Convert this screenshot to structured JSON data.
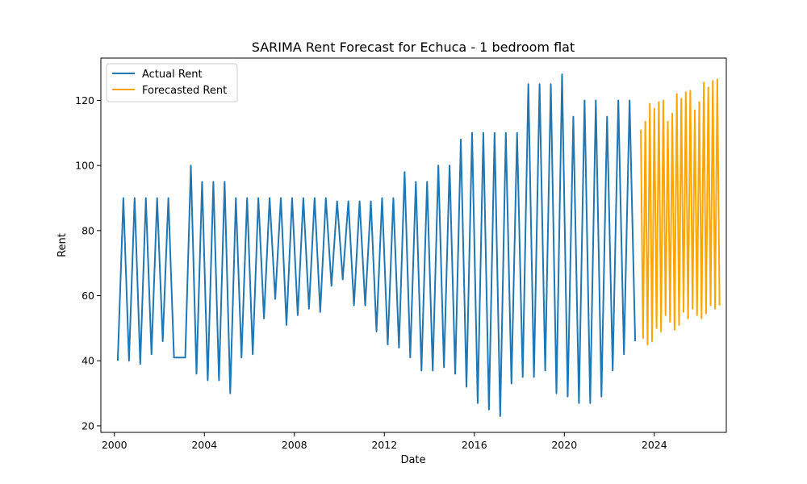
{
  "chart_data": {
    "type": "line",
    "title": "SARIMA Rent Forecast for Echuca - 1 bedroom flat",
    "xlabel": "Date",
    "ylabel": "Rent",
    "xlim": [
      1999.4,
      2027.2
    ],
    "ylim": [
      18,
      133
    ],
    "xticks": [
      2000,
      2004,
      2008,
      2012,
      2016,
      2020,
      2024
    ],
    "xtick_labels": [
      "2000",
      "2004",
      "2008",
      "2012",
      "2016",
      "2020",
      "2024"
    ],
    "yticks": [
      20,
      40,
      60,
      80,
      100,
      120
    ],
    "ytick_labels": [
      "20",
      "40",
      "60",
      "80",
      "100",
      "120"
    ],
    "grid": false,
    "legend": {
      "position": "top-left"
    },
    "series": [
      {
        "name": "Actual Rent",
        "color": "#1f77b4",
        "points": [
          [
            2000.15,
            40
          ],
          [
            2000.4,
            90
          ],
          [
            2000.65,
            40
          ],
          [
            2000.9,
            90
          ],
          [
            2001.15,
            39
          ],
          [
            2001.4,
            90
          ],
          [
            2001.65,
            42
          ],
          [
            2001.9,
            90
          ],
          [
            2002.15,
            46
          ],
          [
            2002.4,
            90
          ],
          [
            2002.65,
            41
          ],
          [
            2002.9,
            41
          ],
          [
            2003.15,
            41
          ],
          [
            2003.4,
            100
          ],
          [
            2003.65,
            36
          ],
          [
            2003.9,
            95
          ],
          [
            2004.15,
            34
          ],
          [
            2004.4,
            95
          ],
          [
            2004.65,
            34
          ],
          [
            2004.9,
            95
          ],
          [
            2005.15,
            30
          ],
          [
            2005.4,
            90
          ],
          [
            2005.65,
            41
          ],
          [
            2005.9,
            90
          ],
          [
            2006.15,
            42
          ],
          [
            2006.4,
            90
          ],
          [
            2006.65,
            53
          ],
          [
            2006.9,
            90
          ],
          [
            2007.15,
            59
          ],
          [
            2007.4,
            90
          ],
          [
            2007.65,
            51
          ],
          [
            2007.9,
            90
          ],
          [
            2008.15,
            54
          ],
          [
            2008.4,
            90
          ],
          [
            2008.65,
            56
          ],
          [
            2008.9,
            90
          ],
          [
            2009.15,
            55
          ],
          [
            2009.4,
            90
          ],
          [
            2009.65,
            63
          ],
          [
            2009.9,
            89
          ],
          [
            2010.15,
            65
          ],
          [
            2010.4,
            89
          ],
          [
            2010.65,
            57
          ],
          [
            2010.9,
            89
          ],
          [
            2011.15,
            57
          ],
          [
            2011.4,
            89
          ],
          [
            2011.65,
            49
          ],
          [
            2011.9,
            90
          ],
          [
            2012.15,
            45
          ],
          [
            2012.4,
            90
          ],
          [
            2012.65,
            44
          ],
          [
            2012.9,
            98
          ],
          [
            2013.15,
            41
          ],
          [
            2013.4,
            95
          ],
          [
            2013.65,
            37
          ],
          [
            2013.9,
            95
          ],
          [
            2014.15,
            37
          ],
          [
            2014.4,
            100
          ],
          [
            2014.65,
            38
          ],
          [
            2014.9,
            100
          ],
          [
            2015.15,
            36
          ],
          [
            2015.4,
            108
          ],
          [
            2015.65,
            32
          ],
          [
            2015.9,
            110
          ],
          [
            2016.15,
            27
          ],
          [
            2016.4,
            110
          ],
          [
            2016.65,
            25
          ],
          [
            2016.9,
            110
          ],
          [
            2017.15,
            23
          ],
          [
            2017.4,
            110
          ],
          [
            2017.65,
            33
          ],
          [
            2017.9,
            110
          ],
          [
            2018.15,
            35
          ],
          [
            2018.4,
            125
          ],
          [
            2018.65,
            35
          ],
          [
            2018.9,
            125
          ],
          [
            2019.15,
            37
          ],
          [
            2019.4,
            125
          ],
          [
            2019.65,
            30
          ],
          [
            2019.9,
            128
          ],
          [
            2020.15,
            29
          ],
          [
            2020.4,
            115
          ],
          [
            2020.65,
            27
          ],
          [
            2020.9,
            120
          ],
          [
            2021.15,
            27
          ],
          [
            2021.4,
            120
          ],
          [
            2021.65,
            29
          ],
          [
            2021.9,
            115
          ],
          [
            2022.15,
            37
          ],
          [
            2022.4,
            120
          ],
          [
            2022.65,
            42
          ],
          [
            2022.9,
            120
          ],
          [
            2023.15,
            46
          ]
        ]
      },
      {
        "name": "Forecasted Rent",
        "color": "#ffa500",
        "points": [
          [
            2023.4,
            111
          ],
          [
            2023.5,
            47
          ],
          [
            2023.6,
            113.5
          ],
          [
            2023.7,
            45
          ],
          [
            2023.8,
            119
          ],
          [
            2023.9,
            46
          ],
          [
            2024.0,
            117.5
          ],
          [
            2024.1,
            50
          ],
          [
            2024.2,
            119.5
          ],
          [
            2024.3,
            49
          ],
          [
            2024.4,
            120
          ],
          [
            2024.5,
            54
          ],
          [
            2024.6,
            113.5
          ],
          [
            2024.7,
            52
          ],
          [
            2024.8,
            116
          ],
          [
            2024.9,
            49.5
          ],
          [
            2025.0,
            122
          ],
          [
            2025.1,
            51
          ],
          [
            2025.2,
            120.5
          ],
          [
            2025.3,
            55
          ],
          [
            2025.4,
            122.5
          ],
          [
            2025.5,
            53
          ],
          [
            2025.6,
            123
          ],
          [
            2025.7,
            56
          ],
          [
            2025.8,
            117
          ],
          [
            2025.9,
            54
          ],
          [
            2026.0,
            119.5
          ],
          [
            2026.1,
            53
          ],
          [
            2026.2,
            125.5
          ],
          [
            2026.3,
            54.5
          ],
          [
            2026.4,
            124
          ],
          [
            2026.5,
            57
          ],
          [
            2026.6,
            126
          ],
          [
            2026.7,
            56
          ],
          [
            2026.8,
            126.5
          ],
          [
            2026.9,
            57
          ]
        ]
      }
    ]
  }
}
